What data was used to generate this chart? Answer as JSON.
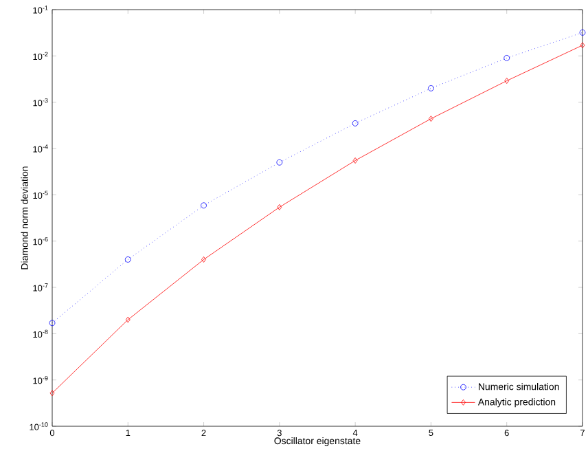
{
  "chart_data": {
    "type": "line",
    "xlabel": "Oscillator eigenstate",
    "ylabel": "Diamond norm deviation",
    "x": [
      0,
      1,
      2,
      3,
      4,
      5,
      6,
      7
    ],
    "series": [
      {
        "name": "Numeric simulation",
        "color": "#0000ff",
        "marker": "circle",
        "line_style": "dotted",
        "values": [
          1.7e-08,
          4e-07,
          5.9e-06,
          5e-05,
          0.00035,
          0.002,
          0.009,
          0.032
        ]
      },
      {
        "name": "Analytic prediction",
        "color": "#ff0000",
        "marker": "diamond",
        "line_style": "solid",
        "values": [
          5.2e-10,
          2e-08,
          4e-07,
          5.4e-06,
          5.5e-05,
          0.00044,
          0.0029,
          0.017
        ]
      }
    ],
    "log": "y",
    "grid": false,
    "legend": "bottom right",
    "xlim": [
      0,
      7
    ],
    "ylim": [
      1e-10,
      0.1
    ],
    "xticks": [
      0,
      1,
      2,
      3,
      4,
      5,
      6,
      7
    ],
    "yticks": [
      {
        "value": 1e-10,
        "label": "10$^{-10}$"
      },
      {
        "value": 1e-09,
        "label": "10$^{-9}$"
      },
      {
        "value": 1e-08,
        "label": "10$^{-8}$"
      },
      {
        "value": 1e-07,
        "label": "10$^{-7}$"
      },
      {
        "value": 1e-06,
        "label": "10$^{-6}$"
      },
      {
        "value": 1e-05,
        "label": "10$^{-5}$"
      },
      {
        "value": 0.0001,
        "label": "10$^{-4}$"
      },
      {
        "value": 0.001,
        "label": "10$^{-3}$"
      },
      {
        "value": 0.01,
        "label": "10$^{-2}$"
      },
      {
        "value": 0.1,
        "label": "10$^{-1}$"
      }
    ]
  }
}
